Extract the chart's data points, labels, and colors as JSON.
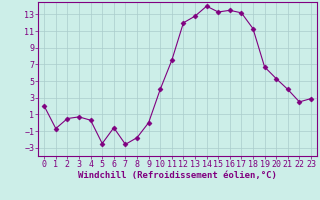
{
  "x": [
    0,
    1,
    2,
    3,
    4,
    5,
    6,
    7,
    8,
    9,
    10,
    11,
    12,
    13,
    14,
    15,
    16,
    17,
    18,
    19,
    20,
    21,
    22,
    23
  ],
  "y": [
    2.0,
    -0.7,
    0.5,
    0.7,
    0.3,
    -2.5,
    -0.6,
    -2.6,
    -1.8,
    0.0,
    4.0,
    7.5,
    12.0,
    12.8,
    14.0,
    13.3,
    13.5,
    13.2,
    11.3,
    6.7,
    5.3,
    4.0,
    2.5,
    2.9
  ],
  "line_color": "#800080",
  "marker": "D",
  "marker_size": 2.5,
  "bg_color": "#cceee8",
  "grid_color": "#aacccc",
  "tick_color": "#800080",
  "label_color": "#800080",
  "xlabel": "Windchill (Refroidissement éolien,°C)",
  "ylim": [
    -4,
    14.5
  ],
  "yticks": [
    -3,
    -1,
    1,
    3,
    5,
    7,
    9,
    11,
    13
  ],
  "xlim": [
    -0.5,
    23.5
  ],
  "xticks": [
    0,
    1,
    2,
    3,
    4,
    5,
    6,
    7,
    8,
    9,
    10,
    11,
    12,
    13,
    14,
    15,
    16,
    17,
    18,
    19,
    20,
    21,
    22,
    23
  ],
  "xlabel_fontsize": 6.5,
  "tick_fontsize": 6
}
